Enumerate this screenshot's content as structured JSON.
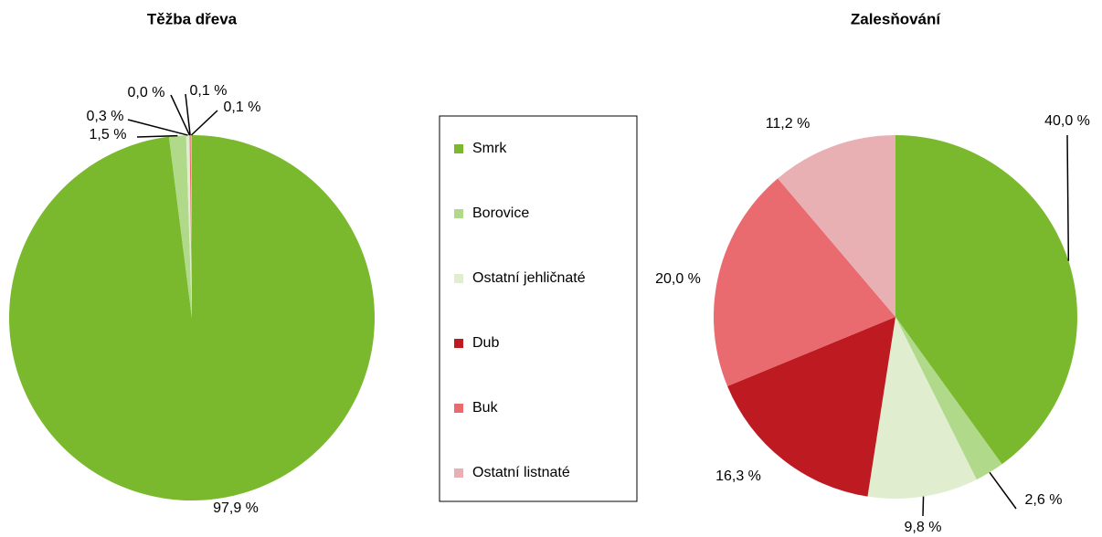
{
  "chart_data": [
    {
      "type": "pie",
      "title": "Těžba dřeva",
      "categories": [
        "Smrk",
        "Borovice",
        "Ostatní jehličnaté",
        "Dub",
        "Buk",
        "Ostatní listnaté"
      ],
      "values": [
        97.9,
        1.5,
        0.3,
        0.0,
        0.1,
        0.1
      ],
      "value_labels": [
        "97,9 %",
        "1,5 %",
        "0,3 %",
        "0,0 %",
        "0,1 %",
        "0,1 %"
      ],
      "colors": [
        "#7ab92e",
        "#b0d98a",
        "#e0eecf",
        "#be1a22",
        "#e96a6f",
        "#e8b0b3"
      ]
    },
    {
      "type": "pie",
      "title": "Zalesňování",
      "categories": [
        "Smrk",
        "Borovice",
        "Ostatní jehličnaté",
        "Dub",
        "Buk",
        "Ostatní listnaté"
      ],
      "values": [
        40.0,
        2.6,
        9.8,
        16.3,
        20.0,
        11.2
      ],
      "value_labels": [
        "40,0 %",
        "2,6 %",
        "9,8 %",
        "16,3 %",
        "20,0 %",
        "11,2 %"
      ],
      "colors": [
        "#7ab92e",
        "#b0d98a",
        "#e0eecf",
        "#be1a22",
        "#e96a6f",
        "#e8b0b3"
      ]
    }
  ]
}
